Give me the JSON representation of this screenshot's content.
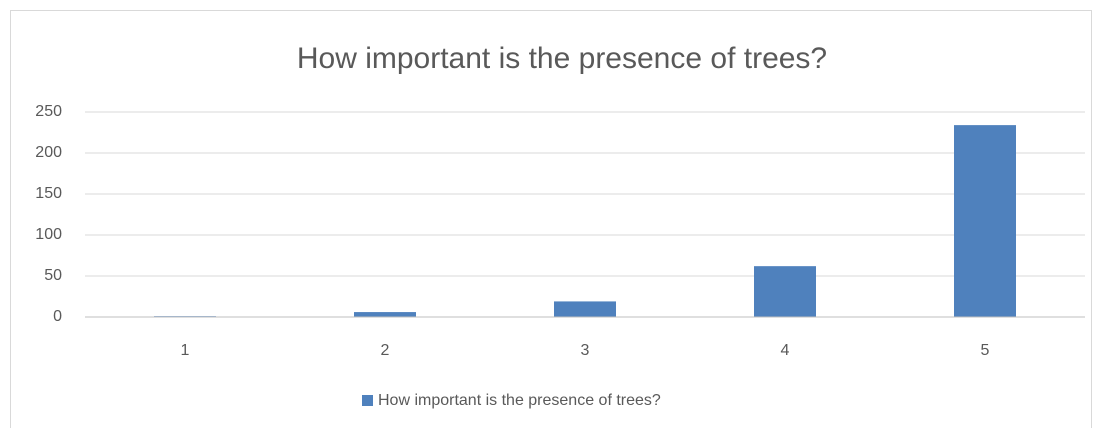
{
  "chart_data": {
    "type": "bar",
    "title": "How important is the presence of trees?",
    "categories": [
      "1",
      "2",
      "3",
      "4",
      "5"
    ],
    "series": [
      {
        "name": "How important is the presence of trees?",
        "color": "#4f81bd",
        "values": [
          1,
          6,
          19,
          62,
          234
        ]
      }
    ],
    "ylim": [
      0,
      250
    ],
    "yticks": [
      0,
      50,
      100,
      150,
      200,
      250
    ],
    "grid": true,
    "legend": "bottom"
  }
}
